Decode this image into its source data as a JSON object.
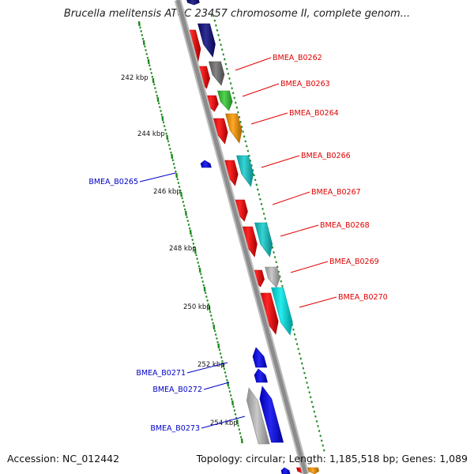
{
  "title": "Brucella melitensis ATCC 23457 chromosome II, complete genom...",
  "accession": "Accession: NC_012442",
  "summary": "Topology: circular; Length: 1,185,518 bp; Genes: 1,089",
  "colors": {
    "forward_label": "#e00000",
    "reverse_label": "#0000c8",
    "backbone": "#8c8c8c",
    "tick": "#1e8a1e",
    "cds_red": "#ff0000",
    "navy": "#0a0a80",
    "gray": "#707070",
    "green": "#33cc33",
    "orange": "#ff9900",
    "teal": "#11cccc",
    "cyan": "#00eaea",
    "lightgray": "#c0c0c0",
    "blue": "#0000ee"
  },
  "scale_labels": [
    "242 kbp",
    "244 kbp",
    "246 kbp",
    "248 kbp",
    "250 kbp",
    "252 kbp",
    "254 kbp"
  ],
  "forward_genes": [
    "BMEA_B0262",
    "BMEA_B0263",
    "BMEA_B0264",
    "BMEA_B0266",
    "BMEA_B0267",
    "BMEA_B0268",
    "BMEA_B0269",
    "BMEA_B0270"
  ],
  "reverse_genes": [
    "BMEA_B0265",
    "BMEA_B0271",
    "BMEA_B0272",
    "BMEA_B0273"
  ]
}
